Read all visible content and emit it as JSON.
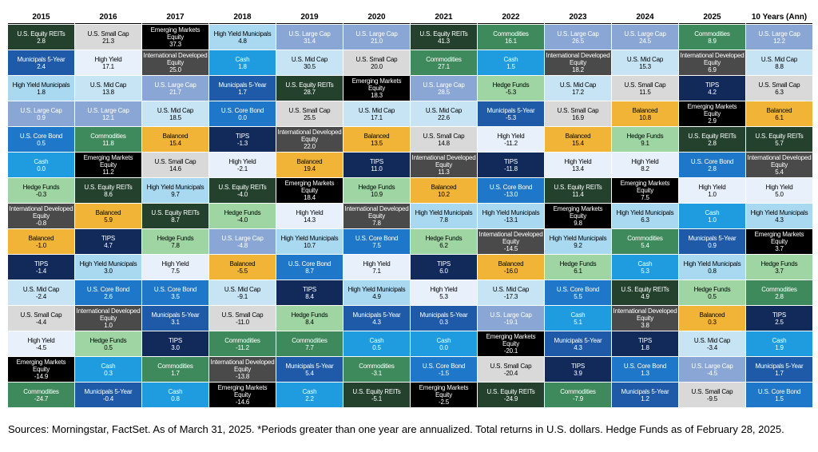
{
  "colors": {
    "U.S. Equity REITs": [
      "#24412e",
      "#ffffff"
    ],
    "Municipals 5-Year": [
      "#1e5aa8",
      "#ffffff"
    ],
    "High Yield Municipals": [
      "#a9d8f1",
      "#000000"
    ],
    "U.S. Large Cap": [
      "#8aa6d4",
      "#ffffff"
    ],
    "U.S. Core Bond": [
      "#1e77c9",
      "#ffffff"
    ],
    "Cash": [
      "#1f9ce0",
      "#ffffff"
    ],
    "Hedge Funds": [
      "#9fd4a3",
      "#000000"
    ],
    "International Developed Equity": [
      "#4a4a4a",
      "#ffffff"
    ],
    "Balanced": [
      "#f2b437",
      "#000000"
    ],
    "TIPS": [
      "#112a5a",
      "#ffffff"
    ],
    "U.S. Mid Cap": [
      "#c7e4f5",
      "#000000"
    ],
    "U.S. Small Cap": [
      "#d9d9d9",
      "#000000"
    ],
    "High Yield": [
      "#e8f1fb",
      "#000000"
    ],
    "Emerging Markets Equity": [
      "#000000",
      "#ffffff"
    ],
    "Commodities": [
      "#3f8a5c",
      "#ffffff"
    ]
  },
  "chart_data": {
    "type": "table",
    "columns": [
      "2015",
      "2016",
      "2017",
      "2018",
      "2019",
      "2020",
      "2021",
      "2022",
      "2023",
      "2024",
      "2025",
      "10 Years (Ann)"
    ],
    "cells": [
      [
        [
          "U.S. Equity REITs",
          "2.8"
        ],
        [
          "U.S. Small Cap",
          "21.3"
        ],
        [
          "Emerging Markets Equity",
          "37.3"
        ],
        [
          "High Yield Municipals",
          "4.8"
        ],
        [
          "U.S. Large Cap",
          "31.4"
        ],
        [
          "U.S. Large Cap",
          "21.0"
        ],
        [
          "U.S. Equity REITs",
          "41.3"
        ],
        [
          "Commodities",
          "16.1"
        ],
        [
          "U.S. Large Cap",
          "26.5"
        ],
        [
          "U.S. Large Cap",
          "24.5"
        ],
        [
          "Commodities",
          "8.9"
        ],
        [
          "U.S. Large Cap",
          "12.2"
        ]
      ],
      [
        [
          "Municipals 5-Year",
          "2.4"
        ],
        [
          "High Yield",
          "17.1"
        ],
        [
          "International Developed Equity",
          "25.0"
        ],
        [
          "Cash",
          "1.8"
        ],
        [
          "U.S. Mid Cap",
          "30.5"
        ],
        [
          "U.S. Small Cap",
          "20.0"
        ],
        [
          "Commodities",
          "27.1"
        ],
        [
          "Cash",
          "1.5"
        ],
        [
          "International Developed Equity",
          "18.2"
        ],
        [
          "U.S. Mid Cap",
          "15.3"
        ],
        [
          "International Developed Equity",
          "6.9"
        ],
        [
          "U.S. Mid Cap",
          "8.8"
        ]
      ],
      [
        [
          "High Yield Municipals",
          "1.8"
        ],
        [
          "U.S. Mid Cap",
          "13.8"
        ],
        [
          "U.S. Large Cap",
          "21.7"
        ],
        [
          "Municipals 5-Year",
          "1.7"
        ],
        [
          "U.S. Equity REITs",
          "28.7"
        ],
        [
          "Emerging Markets Equity",
          "18.3"
        ],
        [
          "U.S. Large Cap",
          "28.5"
        ],
        [
          "Hedge Funds",
          "-5.3"
        ],
        [
          "U.S. Mid Cap",
          "17.2"
        ],
        [
          "U.S. Small Cap",
          "11.5"
        ],
        [
          "TIPS",
          "4.2"
        ],
        [
          "U.S. Small Cap",
          "6.3"
        ]
      ],
      [
        [
          "U.S. Large Cap",
          "0.9"
        ],
        [
          "U.S. Large Cap",
          "12.1"
        ],
        [
          "U.S. Mid Cap",
          "18.5"
        ],
        [
          "U.S. Core Bond",
          "0.0"
        ],
        [
          "U.S. Small Cap",
          "25.5"
        ],
        [
          "U.S. Mid Cap",
          "17.1"
        ],
        [
          "U.S. Mid Cap",
          "22.6"
        ],
        [
          "Municipals 5-Year",
          "-5.3"
        ],
        [
          "U.S. Small Cap",
          "16.9"
        ],
        [
          "Balanced",
          "10.8"
        ],
        [
          "Emerging Markets Equity",
          "2.9"
        ],
        [
          "Balanced",
          "6.1"
        ]
      ],
      [
        [
          "U.S. Core Bond",
          "0.5"
        ],
        [
          "Commodities",
          "11.8"
        ],
        [
          "Balanced",
          "15.4"
        ],
        [
          "TIPS",
          "-1.3"
        ],
        [
          "International Developed Equity",
          "22.0"
        ],
        [
          "Balanced",
          "13.5"
        ],
        [
          "U.S. Small Cap",
          "14.8"
        ],
        [
          "High Yield",
          "-11.2"
        ],
        [
          "Balanced",
          "15.4"
        ],
        [
          "Hedge Funds",
          "9.1"
        ],
        [
          "U.S. Equity REITs",
          "2.8"
        ],
        [
          "U.S. Equity REITs",
          "5.7"
        ]
      ],
      [
        [
          "Cash",
          "0.0"
        ],
        [
          "Emerging Markets Equity",
          "11.2"
        ],
        [
          "U.S. Small Cap",
          "14.6"
        ],
        [
          "High Yield",
          "-2.1"
        ],
        [
          "Balanced",
          "19.4"
        ],
        [
          "TIPS",
          "11.0"
        ],
        [
          "International Developed Equity",
          "11.3"
        ],
        [
          "TIPS",
          "-11.8"
        ],
        [
          "High Yield",
          "13.4"
        ],
        [
          "High Yield",
          "8.2"
        ],
        [
          "U.S. Core Bond",
          "2.8"
        ],
        [
          "International Developed Equity",
          "5.4"
        ]
      ],
      [
        [
          "Hedge Funds",
          "-0.3"
        ],
        [
          "U.S. Equity REITs",
          "8.6"
        ],
        [
          "High Yield Municipals",
          "9.7"
        ],
        [
          "U.S. Equity REITs",
          "-4.0"
        ],
        [
          "Emerging Markets Equity",
          "18.4"
        ],
        [
          "Hedge Funds",
          "10.9"
        ],
        [
          "Balanced",
          "10.2"
        ],
        [
          "U.S. Core Bond",
          "-13.0"
        ],
        [
          "U.S. Equity REITs",
          "11.4"
        ],
        [
          "Emerging Markets Equity",
          "7.5"
        ],
        [
          "High Yield",
          "1.0"
        ],
        [
          "High Yield",
          "5.0"
        ]
      ],
      [
        [
          "International Developed Equity",
          "-0.8"
        ],
        [
          "Balanced",
          "5.9"
        ],
        [
          "U.S. Equity REITs",
          "8.7"
        ],
        [
          "Hedge Funds",
          "-4.0"
        ],
        [
          "High Yield",
          "14.3"
        ],
        [
          "International Developed Equity",
          "7.8"
        ],
        [
          "High Yield Municipals",
          "7.8"
        ],
        [
          "High Yield Municipals",
          "-13.1"
        ],
        [
          "Emerging Markets Equity",
          "9.8"
        ],
        [
          "High Yield Municipals",
          "6.3"
        ],
        [
          "Cash",
          "1.0"
        ],
        [
          "High Yield Municipals",
          "4.3"
        ]
      ],
      [
        [
          "Balanced",
          "-1.0"
        ],
        [
          "TIPS",
          "4.7"
        ],
        [
          "Hedge Funds",
          "7.8"
        ],
        [
          "U.S. Large Cap",
          "-4.8"
        ],
        [
          "High Yield Municipals",
          "10.7"
        ],
        [
          "U.S. Core Bond",
          "7.5"
        ],
        [
          "Hedge Funds",
          "6.2"
        ],
        [
          "International Developed Equity",
          "-14.5"
        ],
        [
          "High Yield Municipals",
          "9.2"
        ],
        [
          "Commodities",
          "5.4"
        ],
        [
          "Municipals 5-Year",
          "0.9"
        ],
        [
          "Emerging Markets Equity",
          "3.7"
        ]
      ],
      [
        [
          "TIPS",
          "-1.4"
        ],
        [
          "High Yield Municipals",
          "3.0"
        ],
        [
          "High Yield",
          "7.5"
        ],
        [
          "Balanced",
          "-5.5"
        ],
        [
          "U.S. Core Bond",
          "8.7"
        ],
        [
          "High Yield",
          "7.1"
        ],
        [
          "TIPS",
          "6.0"
        ],
        [
          "Balanced",
          "-16.0"
        ],
        [
          "Hedge Funds",
          "6.1"
        ],
        [
          "Cash",
          "5.3"
        ],
        [
          "High Yield Municipals",
          "0.8"
        ],
        [
          "Hedge Funds",
          "3.7"
        ]
      ],
      [
        [
          "U.S. Mid Cap",
          "-2.4"
        ],
        [
          "U.S. Core Bond",
          "2.6"
        ],
        [
          "U.S. Core Bond",
          "3.5"
        ],
        [
          "U.S. Mid Cap",
          "-9.1"
        ],
        [
          "TIPS",
          "8.4"
        ],
        [
          "High Yield Municipals",
          "4.9"
        ],
        [
          "High Yield",
          "5.3"
        ],
        [
          "U.S. Mid Cap",
          "-17.3"
        ],
        [
          "U.S. Core Bond",
          "5.5"
        ],
        [
          "U.S. Equity REITs",
          "4.9"
        ],
        [
          "Hedge Funds",
          "0.5"
        ],
        [
          "Commodities",
          "2.8"
        ]
      ],
      [
        [
          "U.S. Small Cap",
          "-4.4"
        ],
        [
          "International Developed Equity",
          "1.0"
        ],
        [
          "Municipals 5-Year",
          "3.1"
        ],
        [
          "U.S. Small Cap",
          "-11.0"
        ],
        [
          "Hedge Funds",
          "8.4"
        ],
        [
          "Municipals 5-Year",
          "4.3"
        ],
        [
          "Municipals 5-Year",
          "0.3"
        ],
        [
          "U.S. Large Cap",
          "-19.1"
        ],
        [
          "Cash",
          "5.1"
        ],
        [
          "International Developed Equity",
          "3.8"
        ],
        [
          "Balanced",
          "0.3"
        ],
        [
          "TIPS",
          "2.5"
        ]
      ],
      [
        [
          "High Yield",
          "-4.5"
        ],
        [
          "Hedge Funds",
          "0.5"
        ],
        [
          "TIPS",
          "3.0"
        ],
        [
          "Commodities",
          "-11.2"
        ],
        [
          "Commodities",
          "7.7"
        ],
        [
          "Cash",
          "0.5"
        ],
        [
          "Cash",
          "0.0"
        ],
        [
          "Emerging Markets Equity",
          "-20.1"
        ],
        [
          "Municipals 5-Year",
          "4.3"
        ],
        [
          "TIPS",
          "1.8"
        ],
        [
          "U.S. Mid Cap",
          "-3.4"
        ],
        [
          "Cash",
          "1.9"
        ]
      ],
      [
        [
          "Emerging Markets Equity",
          "-14.9"
        ],
        [
          "Cash",
          "0.3"
        ],
        [
          "Commodities",
          "1.7"
        ],
        [
          "International Developed Equity",
          "-13.8"
        ],
        [
          "Municipals 5-Year",
          "5.4"
        ],
        [
          "Commodities",
          "-3.1"
        ],
        [
          "U.S. Core Bond",
          "-1.5"
        ],
        [
          "U.S. Small Cap",
          "-20.4"
        ],
        [
          "TIPS",
          "3.9"
        ],
        [
          "U.S. Core Bond",
          "1.3"
        ],
        [
          "U.S. Large Cap",
          "-4.5"
        ],
        [
          "Municipals 5-Year",
          "1.7"
        ]
      ],
      [
        [
          "Commodities",
          "-24.7"
        ],
        [
          "Municipals 5-Year",
          "-0.4"
        ],
        [
          "Cash",
          "0.8"
        ],
        [
          "Emerging Markets Equity",
          "-14.6"
        ],
        [
          "Cash",
          "2.2"
        ],
        [
          "U.S. Equity REITs",
          "-5.1"
        ],
        [
          "Emerging Markets Equity",
          "-2.5"
        ],
        [
          "U.S. Equity REITs",
          "-24.9"
        ],
        [
          "Commodities",
          "-7.9"
        ],
        [
          "Municipals 5-Year",
          "1.2"
        ],
        [
          "U.S. Small Cap",
          "-9.5"
        ],
        [
          "U.S. Core Bond",
          "1.5"
        ]
      ]
    ]
  },
  "footer": {
    "source": "Sources: Morningstar, FactSet. As of March 31, 2025. *Periods greater than one year are annualized. Total returns in U.S. dollars. Hedge Funds as of February 28, 2025."
  }
}
